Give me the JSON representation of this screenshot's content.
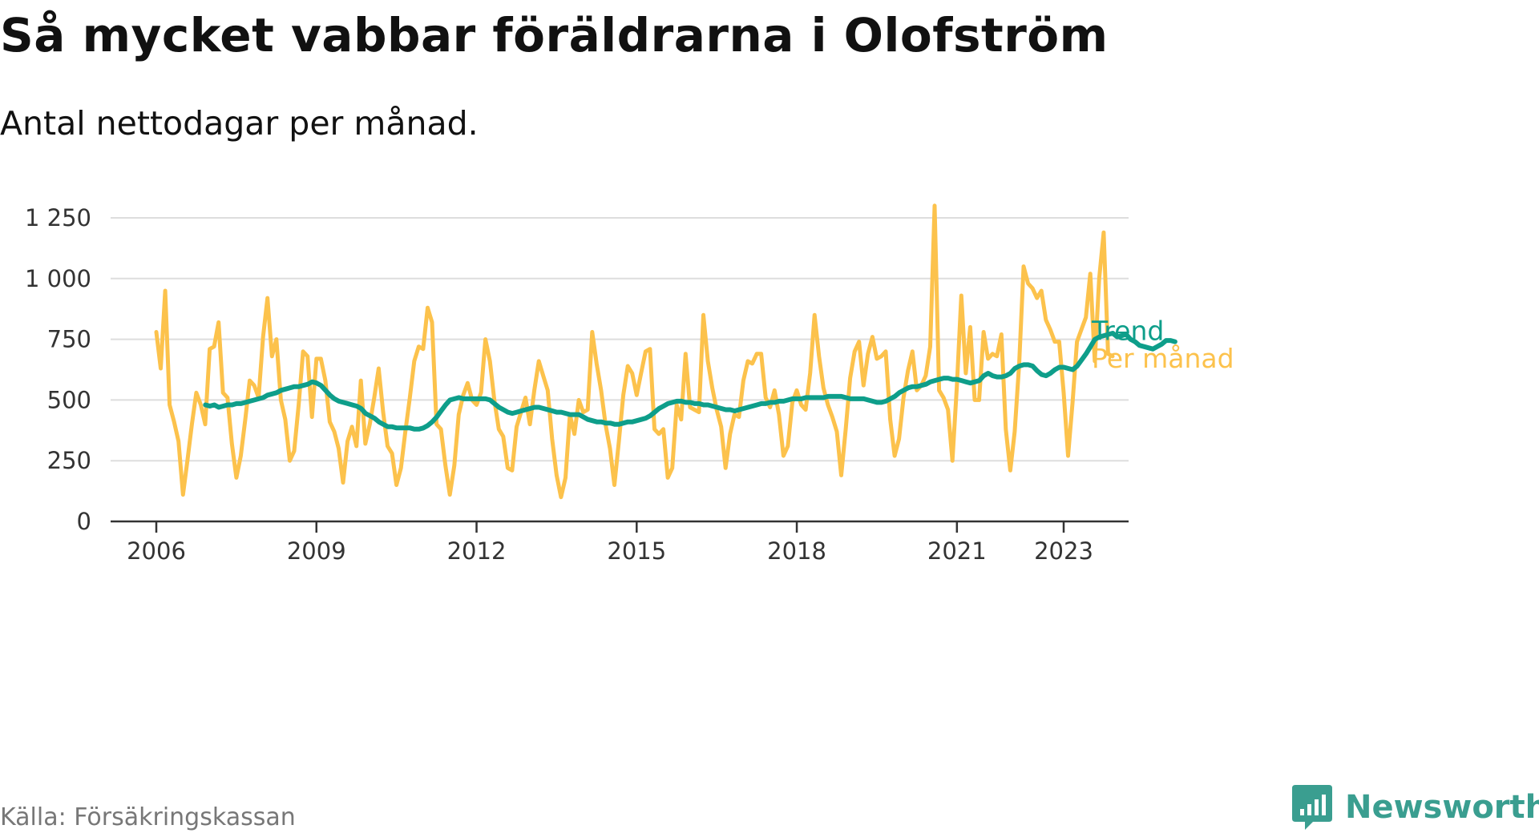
{
  "title": "Så mycket vabbar föräldrarna i Olofström",
  "subtitle": "Antal nettodagar per månad.",
  "source": "Källa: Försäkringskassan",
  "brand": "Newsworthy",
  "colors": {
    "monthly": "#fcc24c",
    "trend": "#0e9e8a",
    "grid": "#dddddd",
    "axis": "#333333",
    "brand": "#3a9e90"
  },
  "chart_data": {
    "type": "line",
    "title": "Så mycket vabbar föräldrarna i Olofström",
    "ylabel": "Antal nettodagar per månad",
    "xlim": [
      2006,
      2024.25
    ],
    "ylim": [
      0,
      1250
    ],
    "y_ticks": [
      0,
      250,
      500,
      750,
      1000,
      1250
    ],
    "y_tick_labels": [
      "0",
      "250",
      "500",
      "750",
      "1 000",
      "1 250"
    ],
    "x_ticks": [
      2006,
      2009,
      2012,
      2015,
      2018,
      2021,
      2023
    ],
    "x_tick_labels": [
      "2006",
      "2009",
      "2012",
      "2015",
      "2018",
      "2021",
      "2023"
    ],
    "grid": true,
    "series": [
      {
        "name": "Per månad",
        "x_start": 2006.0,
        "step": 0.08333,
        "values": [
          780,
          630,
          950,
          480,
          410,
          330,
          110,
          250,
          400,
          530,
          480,
          400,
          710,
          720,
          820,
          530,
          510,
          320,
          180,
          270,
          420,
          580,
          560,
          510,
          760,
          920,
          680,
          750,
          500,
          420,
          250,
          290,
          480,
          700,
          680,
          430,
          670,
          670,
          580,
          410,
          370,
          300,
          160,
          330,
          390,
          310,
          580,
          320,
          400,
          510,
          630,
          450,
          310,
          280,
          150,
          220,
          370,
          510,
          660,
          720,
          710,
          880,
          820,
          400,
          380,
          230,
          110,
          230,
          440,
          520,
          570,
          500,
          480,
          530,
          750,
          660,
          500,
          380,
          350,
          220,
          210,
          390,
          450,
          510,
          400,
          540,
          660,
          600,
          540,
          340,
          190,
          100,
          180,
          440,
          360,
          500,
          450,
          460,
          780,
          650,
          540,
          400,
          300,
          150,
          330,
          520,
          640,
          610,
          520,
          610,
          700,
          710,
          380,
          360,
          380,
          180,
          220,
          480,
          420,
          690,
          470,
          460,
          450,
          850,
          660,
          550,
          460,
          390,
          220,
          360,
          440,
          430,
          580,
          660,
          650,
          690,
          690,
          510,
          470,
          540,
          440,
          270,
          310,
          490,
          540,
          480,
          460,
          610,
          850,
          680,
          550,
          480,
          430,
          370,
          190,
          380,
          590,
          700,
          740,
          560,
          690,
          760,
          670,
          680,
          700,
          420,
          270,
          340,
          510,
          620,
          700,
          540,
          560,
          600,
          720,
          1300,
          540,
          510,
          460,
          250,
          560,
          930,
          610,
          800,
          500,
          500,
          780,
          670,
          690,
          680,
          770,
          380,
          210,
          370,
          650,
          1050,
          980,
          960,
          920,
          950,
          830,
          790,
          740,
          740,
          530,
          270,
          490,
          740,
          790,
          840,
          1020,
          660,
          1000,
          1190,
          690,
          680
        ],
        "color": "#fcc24c"
      },
      {
        "name": "Trend",
        "x_start": 2006.92,
        "step": 0.08333,
        "values": [
          480,
          475,
          480,
          470,
          475,
          480,
          480,
          485,
          485,
          490,
          495,
          500,
          505,
          510,
          520,
          525,
          530,
          540,
          545,
          550,
          555,
          555,
          560,
          565,
          575,
          570,
          560,
          540,
          520,
          505,
          495,
          490,
          485,
          480,
          475,
          465,
          445,
          435,
          425,
          410,
          400,
          390,
          390,
          385,
          385,
          385,
          385,
          380,
          380,
          385,
          395,
          410,
          430,
          455,
          480,
          500,
          505,
          510,
          505,
          505,
          505,
          505,
          505,
          505,
          500,
          485,
          470,
          460,
          450,
          445,
          450,
          455,
          460,
          465,
          470,
          470,
          465,
          460,
          455,
          450,
          450,
          445,
          440,
          440,
          440,
          430,
          420,
          415,
          410,
          410,
          405,
          405,
          400,
          400,
          405,
          410,
          410,
          415,
          420,
          425,
          435,
          450,
          465,
          475,
          485,
          490,
          495,
          495,
          490,
          490,
          485,
          485,
          480,
          480,
          475,
          470,
          465,
          460,
          460,
          455,
          460,
          465,
          470,
          475,
          480,
          485,
          485,
          490,
          490,
          495,
          495,
          500,
          505,
          505,
          505,
          510,
          510,
          510,
          510,
          510,
          515,
          515,
          515,
          515,
          510,
          505,
          505,
          505,
          505,
          500,
          495,
          490,
          490,
          495,
          505,
          515,
          530,
          540,
          550,
          555,
          555,
          560,
          565,
          575,
          580,
          585,
          590,
          590,
          585,
          585,
          580,
          575,
          570,
          575,
          580,
          600,
          610,
          600,
          595,
          595,
          600,
          610,
          630,
          640,
          645,
          645,
          640,
          620,
          605,
          600,
          610,
          625,
          635,
          635,
          630,
          625,
          640,
          665,
          690,
          720,
          750,
          760,
          765,
          770,
          775,
          760,
          765,
          770,
          750,
          740,
          725,
          720,
          715,
          710,
          720,
          730,
          745,
          745,
          740
        ],
        "color": "#0e9e8a"
      }
    ],
    "series_labels": [
      {
        "series": "Trend",
        "text": "Trend"
      },
      {
        "series": "Per månad",
        "text": "Per månad"
      }
    ]
  }
}
